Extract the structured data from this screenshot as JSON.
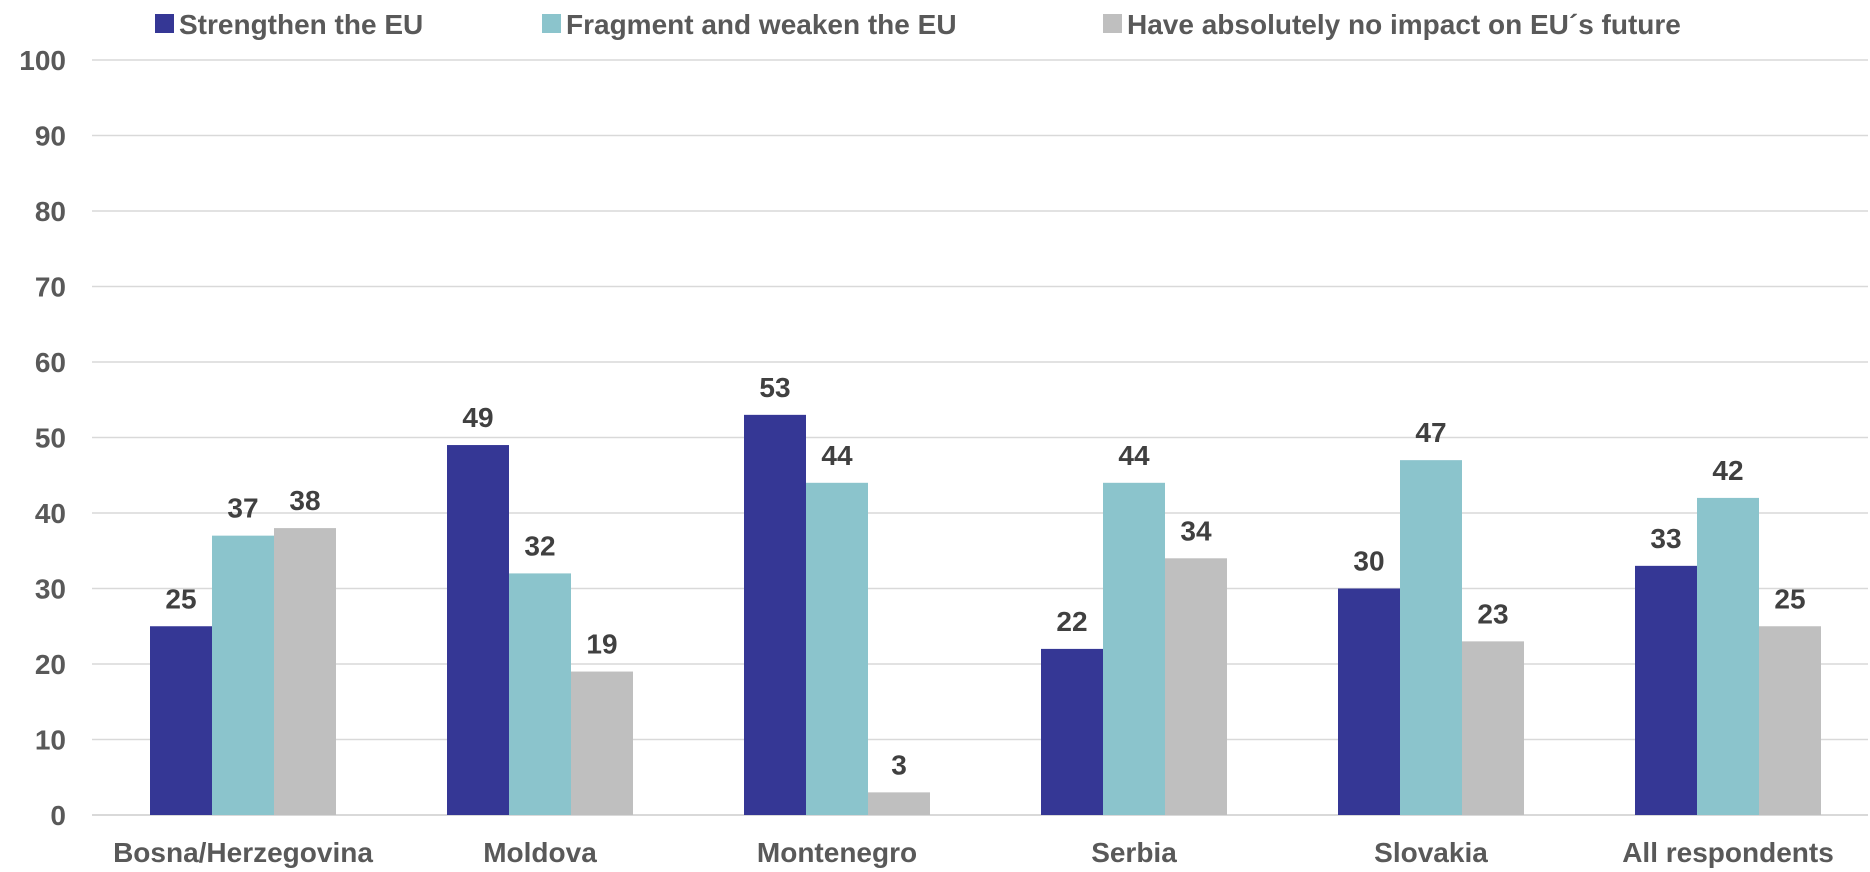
{
  "chart_data": {
    "type": "bar",
    "categories": [
      "Bosna/Herzegovina",
      "Moldova",
      "Montenegro",
      "Serbia",
      "Slovakia",
      "All respondents"
    ],
    "series": [
      {
        "name": "Strengthen the EU",
        "color": "#353795",
        "values": [
          25,
          49,
          53,
          22,
          30,
          33
        ]
      },
      {
        "name": "Fragment and weaken the EU",
        "color": "#8bc4cc",
        "values": [
          37,
          32,
          44,
          44,
          47,
          42
        ]
      },
      {
        "name": "Have absolutely no impact on EU´s future",
        "color": "#bfbfbf",
        "values": [
          38,
          19,
          3,
          34,
          23,
          25
        ]
      }
    ],
    "y_ticks": [
      "0",
      "10",
      "20",
      "30",
      "40",
      "50",
      "60",
      "70",
      "80",
      "90",
      "100"
    ],
    "ylim": [
      0,
      100
    ],
    "grid": true,
    "legend_position": "top"
  }
}
